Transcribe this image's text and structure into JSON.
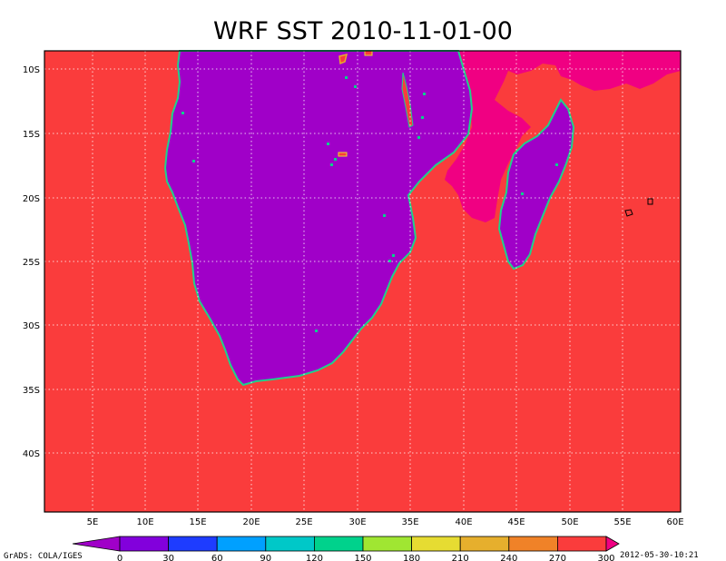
{
  "title": "WRF SST 2010-11-01-00",
  "lat_labels": [
    "10S",
    "15S",
    "20S",
    "25S",
    "30S",
    "35S",
    "40S"
  ],
  "lon_labels": [
    "5E",
    "10E",
    "15E",
    "20E",
    "25E",
    "30E",
    "35E",
    "40E",
    "45E",
    "50E",
    "55E",
    "60E"
  ],
  "colorbar": {
    "levels": [
      "0",
      "30",
      "60",
      "90",
      "120",
      "150",
      "180",
      "210",
      "240",
      "270",
      "300"
    ],
    "colors": [
      "#a000c8",
      "#8200dc",
      "#1e3cff",
      "#00a0ff",
      "#00c8c8",
      "#00d28c",
      "#a0e632",
      "#e6dc32",
      "#e6af2d",
      "#f08228",
      "#fa3c3c",
      "#f00082"
    ]
  },
  "footer_left": "GrADS: COLA/IGES",
  "footer_right": "2012-05-30-10:21",
  "colors": {
    "ocean_warm": "#fa3c3c",
    "ocean_hot": "#f00082",
    "land": "#a000c8"
  }
}
